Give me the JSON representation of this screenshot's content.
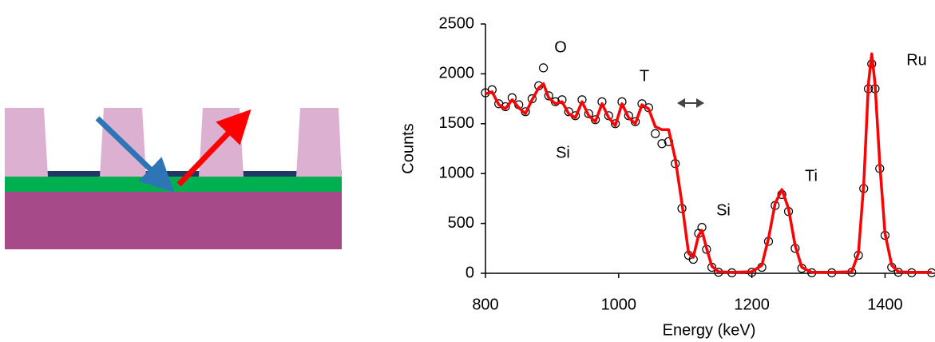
{
  "chart_data": {
    "type": "scatter-fit",
    "x_label": "Energy (keV)",
    "y_label": "Counts",
    "xlim": [
      800,
      1475
    ],
    "xticks": [
      800,
      1000,
      1200,
      1400
    ],
    "ylim": [
      0,
      2500
    ],
    "yticks": [
      0,
      500,
      1000,
      1500,
      2000,
      2500
    ],
    "annotations": [
      "O",
      "T",
      "Si",
      "Si",
      "Ti",
      "Ru"
    ],
    "x": [
      800,
      810,
      820,
      830,
      840,
      850,
      860,
      870,
      880,
      887,
      895,
      905,
      915,
      925,
      935,
      945,
      955,
      965,
      975,
      985,
      995,
      1005,
      1015,
      1025,
      1035,
      1045,
      1055,
      1065,
      1075,
      1085,
      1095,
      1105,
      1112,
      1120,
      1125,
      1132,
      1140,
      1150,
      1170,
      1200,
      1215,
      1225,
      1235,
      1245,
      1255,
      1265,
      1275,
      1290,
      1320,
      1350,
      1360,
      1368,
      1375,
      1380,
      1385,
      1392,
      1400,
      1410,
      1420,
      1440,
      1470
    ],
    "series": [
      {
        "style": "markers",
        "color": "#000000",
        "values": [
          1810,
          1840,
          1700,
          1670,
          1760,
          1690,
          1620,
          1750,
          1880,
          2060,
          1780,
          1720,
          1740,
          1620,
          1580,
          1740,
          1600,
          1540,
          1720,
          1580,
          1500,
          1720,
          1580,
          1520,
          1700,
          1660,
          1400,
          1300,
          1320,
          1100,
          650,
          180,
          140,
          400,
          460,
          240,
          60,
          10,
          5,
          10,
          60,
          320,
          680,
          790,
          620,
          250,
          50,
          5,
          5,
          10,
          180,
          850,
          1850,
          2100,
          1850,
          1050,
          380,
          60,
          10,
          5,
          5
        ]
      },
      {
        "style": "line",
        "color": "#ff0000",
        "values": [
          1800,
          1820,
          1690,
          1650,
          1740,
          1660,
          1600,
          1740,
          1860,
          1900,
          1760,
          1700,
          1720,
          1600,
          1560,
          1720,
          1580,
          1520,
          1700,
          1560,
          1480,
          1700,
          1560,
          1500,
          1690,
          1650,
          1470,
          1440,
          1440,
          1150,
          700,
          200,
          160,
          380,
          430,
          250,
          70,
          15,
          10,
          15,
          80,
          350,
          700,
          840,
          650,
          280,
          60,
          10,
          10,
          15,
          200,
          900,
          1900,
          2200,
          1900,
          1100,
          400,
          80,
          15,
          10,
          10
        ]
      }
    ]
  }
}
